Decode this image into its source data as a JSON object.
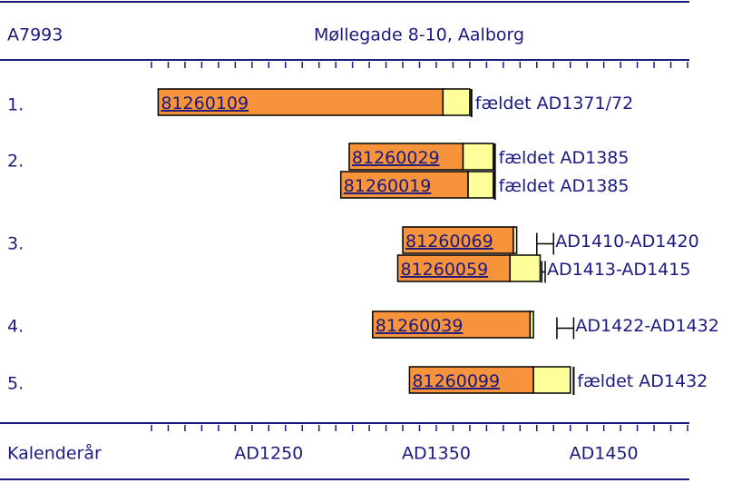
{
  "chart_data": {
    "type": "timeline",
    "site_code": "A7993",
    "title": "Møllegade 8-10, Aalborg",
    "xlabel": "Kalenderår",
    "xlim": [
      1180,
      1500
    ],
    "xticks": [
      {
        "value": 1250,
        "label": "AD1250"
      },
      {
        "value": 1350,
        "label": "AD1350"
      },
      {
        "value": 1450,
        "label": "AD1450"
      }
    ],
    "minor_xticks": [
      1180,
      1190,
      1200,
      1210,
      1220,
      1230,
      1240,
      1250,
      1260,
      1270,
      1280,
      1290,
      1300,
      1310,
      1320,
      1330,
      1340,
      1350,
      1360,
      1370,
      1380,
      1390,
      1400,
      1410,
      1420,
      1430,
      1440,
      1450,
      1460,
      1470,
      1480,
      1490,
      1500
    ],
    "heartwood_color": "#f7933a",
    "sapwood_color": "#ffff99",
    "rows": [
      {
        "label": "1.",
        "samples": [
          {
            "id": "81260109",
            "start": 1184,
            "heartwood_end": 1354,
            "end": 1370,
            "felled": 1371,
            "dating_label": "fældet AD1371/72"
          }
        ]
      },
      {
        "label": "2.",
        "samples": [
          {
            "id": "81260029",
            "start": 1298,
            "heartwood_end": 1366,
            "end": 1384,
            "felled": 1385,
            "dating_label": "fældet AD1385"
          },
          {
            "id": "81260019",
            "start": 1293,
            "heartwood_end": 1369,
            "end": 1384,
            "felled": 1385,
            "dating_label": "fældet AD1385"
          }
        ]
      },
      {
        "label": "3.",
        "samples": [
          {
            "id": "81260069",
            "start": 1330,
            "heartwood_end": 1396,
            "end": 1398,
            "range": [
              1410,
              1420
            ],
            "dating_label": "AD1410-AD1420"
          },
          {
            "id": "81260059",
            "start": 1327,
            "heartwood_end": 1394,
            "end": 1412,
            "range": [
              1413,
              1415
            ],
            "dating_label": "AD1413-AD1415"
          }
        ]
      },
      {
        "label": "4.",
        "samples": [
          {
            "id": "81260039",
            "start": 1312,
            "heartwood_end": 1406,
            "end": 1408,
            "range": [
              1422,
              1432
            ],
            "dating_label": "AD1422-AD1432"
          }
        ]
      },
      {
        "label": "5.",
        "samples": [
          {
            "id": "81260099",
            "start": 1334,
            "heartwood_end": 1408,
            "end": 1430,
            "felled": 1432,
            "dating_label": "fældet AD1432"
          }
        ]
      }
    ]
  }
}
